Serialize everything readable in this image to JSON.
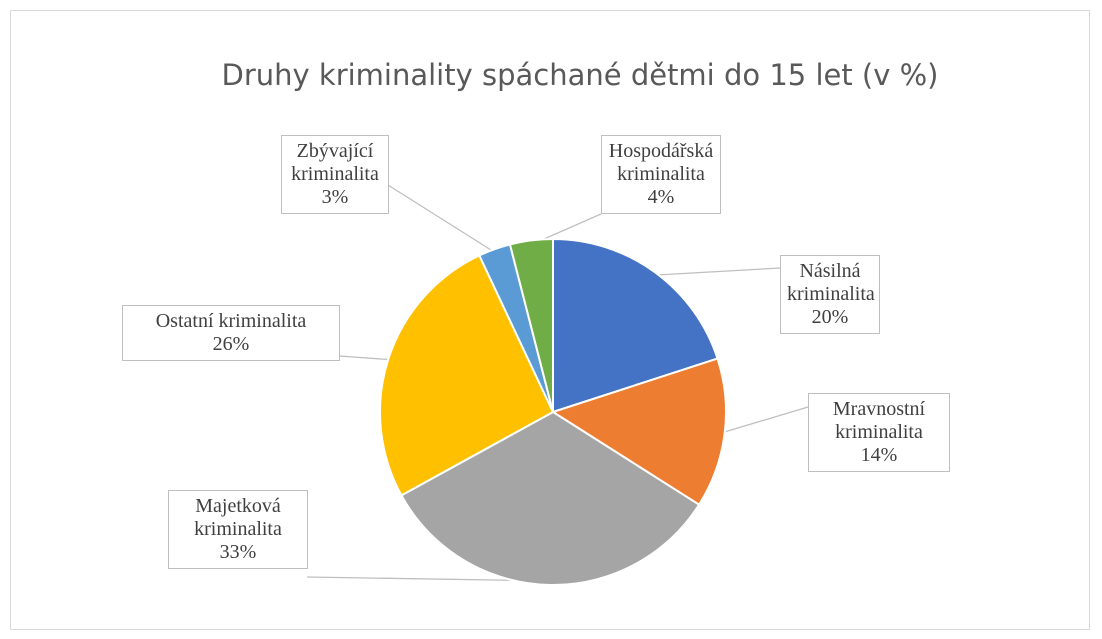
{
  "chart_data": {
    "type": "pie",
    "title": "Druhy kriminality spáchané dětmi do 15 let (v %)",
    "categories": [
      "Násilná kriminalita",
      "Mravnostní kriminalita",
      "Majetková kriminalita",
      "Ostatní kriminalita",
      "Zbývající kriminalita",
      "Hospodářská kriminalita"
    ],
    "values": [
      20,
      14,
      33,
      26,
      3,
      4
    ],
    "value_labels": [
      "20%",
      "14%",
      "33%",
      "26%",
      "3%",
      "4%"
    ],
    "colors": [
      "#4472c4",
      "#ed7d31",
      "#a5a5a5",
      "#ffc000",
      "#5b9bd5",
      "#70ad47"
    ]
  }
}
